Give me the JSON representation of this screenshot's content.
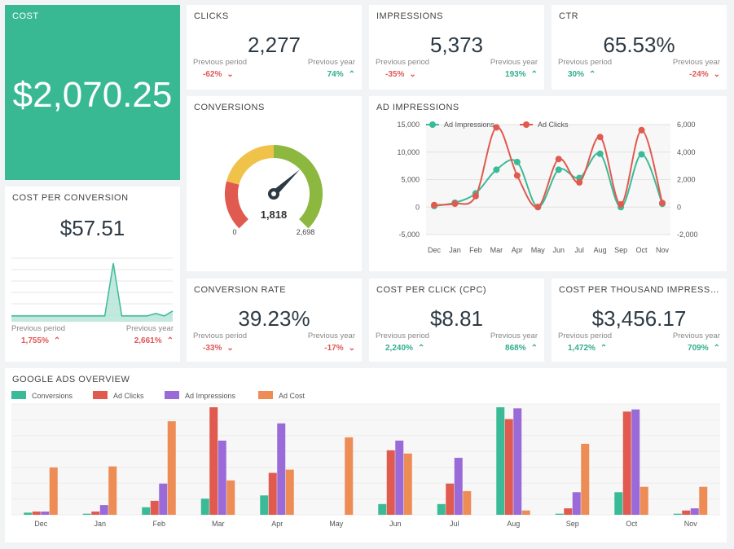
{
  "colors": {
    "teal": "#3bba97",
    "red": "#e05a4f",
    "purple": "#9a6ad9",
    "orange": "#ee8c56",
    "green": "#2fae8d",
    "down": "#e05757"
  },
  "cost": {
    "title": "COST",
    "value": "$2,070.25"
  },
  "kpis": [
    {
      "title": "CLICKS",
      "value": "2,277",
      "prev_label": "Previous period",
      "prev_value": "-62%",
      "prev_dir": "down",
      "year_label": "Previous year",
      "year_value": "74%",
      "year_dir": "up"
    },
    {
      "title": "IMPRESSIONS",
      "value": "5,373",
      "prev_label": "Previous period",
      "prev_value": "-35%",
      "prev_dir": "down",
      "year_label": "Previous year",
      "year_value": "193%",
      "year_dir": "up"
    },
    {
      "title": "CTR",
      "value": "65.53%",
      "prev_label": "Previous period",
      "prev_value": "30%",
      "prev_dir": "up",
      "year_label": "Previous year",
      "year_value": "-24%",
      "year_dir": "down"
    },
    {
      "title": "CONVERSION RATE",
      "value": "39.23%",
      "prev_label": "Previous period",
      "prev_value": "-33%",
      "prev_dir": "down",
      "year_label": "Previous year",
      "year_value": "-17%",
      "year_dir": "down"
    },
    {
      "title": "COST PER CLICK (CPC)",
      "value": "$8.81",
      "prev_label": "Previous period",
      "prev_value": "2,240%",
      "prev_dir": "up",
      "year_label": "Previous year",
      "year_value": "868%",
      "year_dir": "up"
    },
    {
      "title": "COST PER THOUSAND IMPRESSIO...",
      "value": "$3,456.17",
      "prev_label": "Previous period",
      "prev_value": "1,472%",
      "prev_dir": "up",
      "year_label": "Previous year",
      "year_value": "709%",
      "year_dir": "up"
    }
  ],
  "cpc_card": {
    "title": "COST PER CONVERSION",
    "value": "$57.51",
    "prev_label": "Previous period",
    "prev_value": "1,755%",
    "year_label": "Previous year",
    "year_value": "2,661%",
    "sparkline": [
      1,
      1,
      1,
      1,
      1,
      1,
      1,
      1,
      1,
      1,
      1,
      1,
      22,
      1,
      1,
      1,
      1,
      2,
      1,
      3
    ]
  },
  "conversions": {
    "title": "CONVERSIONS",
    "value": "1,818",
    "min": "0",
    "max": "2,698",
    "fraction": 0.674
  },
  "chart_data": [
    {
      "type": "line",
      "title": "AD IMPRESSIONS",
      "categories": [
        "Dec",
        "Jan",
        "Feb",
        "Mar",
        "Apr",
        "May",
        "Jun",
        "Jul",
        "Aug",
        "Sep",
        "Oct",
        "Nov"
      ],
      "series": [
        {
          "name": "Ad Impressions",
          "axis": "left",
          "values": [
            200,
            800,
            2500,
            6800,
            8200,
            0,
            6800,
            5300,
            9700,
            0,
            9600,
            600
          ]
        },
        {
          "name": "Ad Clicks",
          "axis": "right",
          "values": [
            150,
            250,
            800,
            5800,
            2300,
            10,
            3500,
            1800,
            5100,
            200,
            5600,
            300
          ]
        }
      ],
      "y_left": {
        "min": -5000,
        "max": 15000,
        "ticks": [
          "15,000",
          "10,000",
          "5,000",
          "0",
          "-5,000"
        ]
      },
      "y_right": {
        "min": -2000,
        "max": 6000,
        "ticks": [
          "6,000",
          "4,000",
          "2,000",
          "0",
          "-2,000"
        ]
      },
      "legend": "top-left"
    },
    {
      "type": "bar",
      "title": "GOOGLE ADS OVERVIEW",
      "categories": [
        "Dec",
        "Jan",
        "Feb",
        "Mar",
        "Apr",
        "May",
        "Jun",
        "Jul",
        "Aug",
        "Sep",
        "Oct",
        "Nov"
      ],
      "series": [
        {
          "name": "Conversions",
          "values": [
            2,
            1,
            7,
            15,
            18,
            0,
            10,
            10,
            100,
            1,
            21,
            1
          ]
        },
        {
          "name": "Ad Clicks",
          "values": [
            3,
            3,
            13,
            100,
            39,
            0,
            60,
            29,
            89,
            6,
            96,
            4
          ]
        },
        {
          "name": "Ad Impressions",
          "values": [
            3,
            9,
            29,
            69,
            85,
            0,
            69,
            53,
            99,
            21,
            98,
            6
          ]
        },
        {
          "name": "Ad Cost",
          "values": [
            44,
            45,
            87,
            32,
            42,
            72,
            57,
            22,
            4,
            66,
            26,
            26
          ]
        }
      ],
      "legend": "top-left",
      "ylim": [
        0,
        100
      ]
    }
  ]
}
